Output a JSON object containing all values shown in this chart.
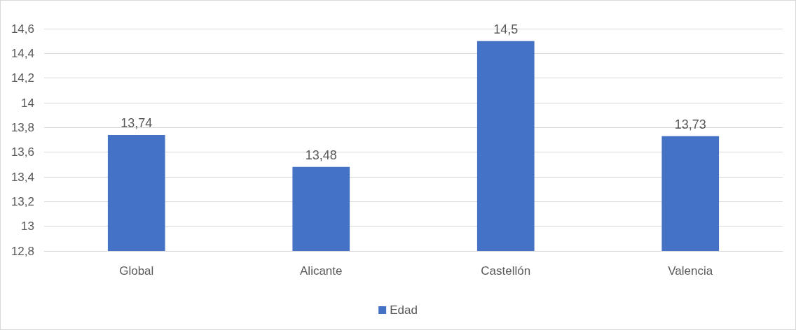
{
  "chart_data": {
    "type": "bar",
    "categories": [
      "Global",
      "Alicante",
      "Castellón",
      "Valencia"
    ],
    "series": [
      {
        "name": "Edad",
        "color": "#4472c4",
        "values": [
          13.74,
          13.48,
          14.5,
          13.73
        ],
        "value_labels": [
          "13,74",
          "13,48",
          "14,5",
          "13,73"
        ]
      }
    ],
    "ylim": [
      12.8,
      14.6
    ],
    "yticks": [
      {
        "value": 12.8,
        "label": "12,8"
      },
      {
        "value": 13,
        "label": "13"
      },
      {
        "value": 13.2,
        "label": "13,2"
      },
      {
        "value": 13.4,
        "label": "13,4"
      },
      {
        "value": 13.6,
        "label": "13,6"
      },
      {
        "value": 13.8,
        "label": "13,8"
      },
      {
        "value": 14,
        "label": "14"
      },
      {
        "value": 14.2,
        "label": "14,2"
      },
      {
        "value": 14.4,
        "label": "14,4"
      },
      {
        "value": 14.6,
        "label": "14,6"
      }
    ],
    "grid": "y",
    "legend": "bottom"
  }
}
